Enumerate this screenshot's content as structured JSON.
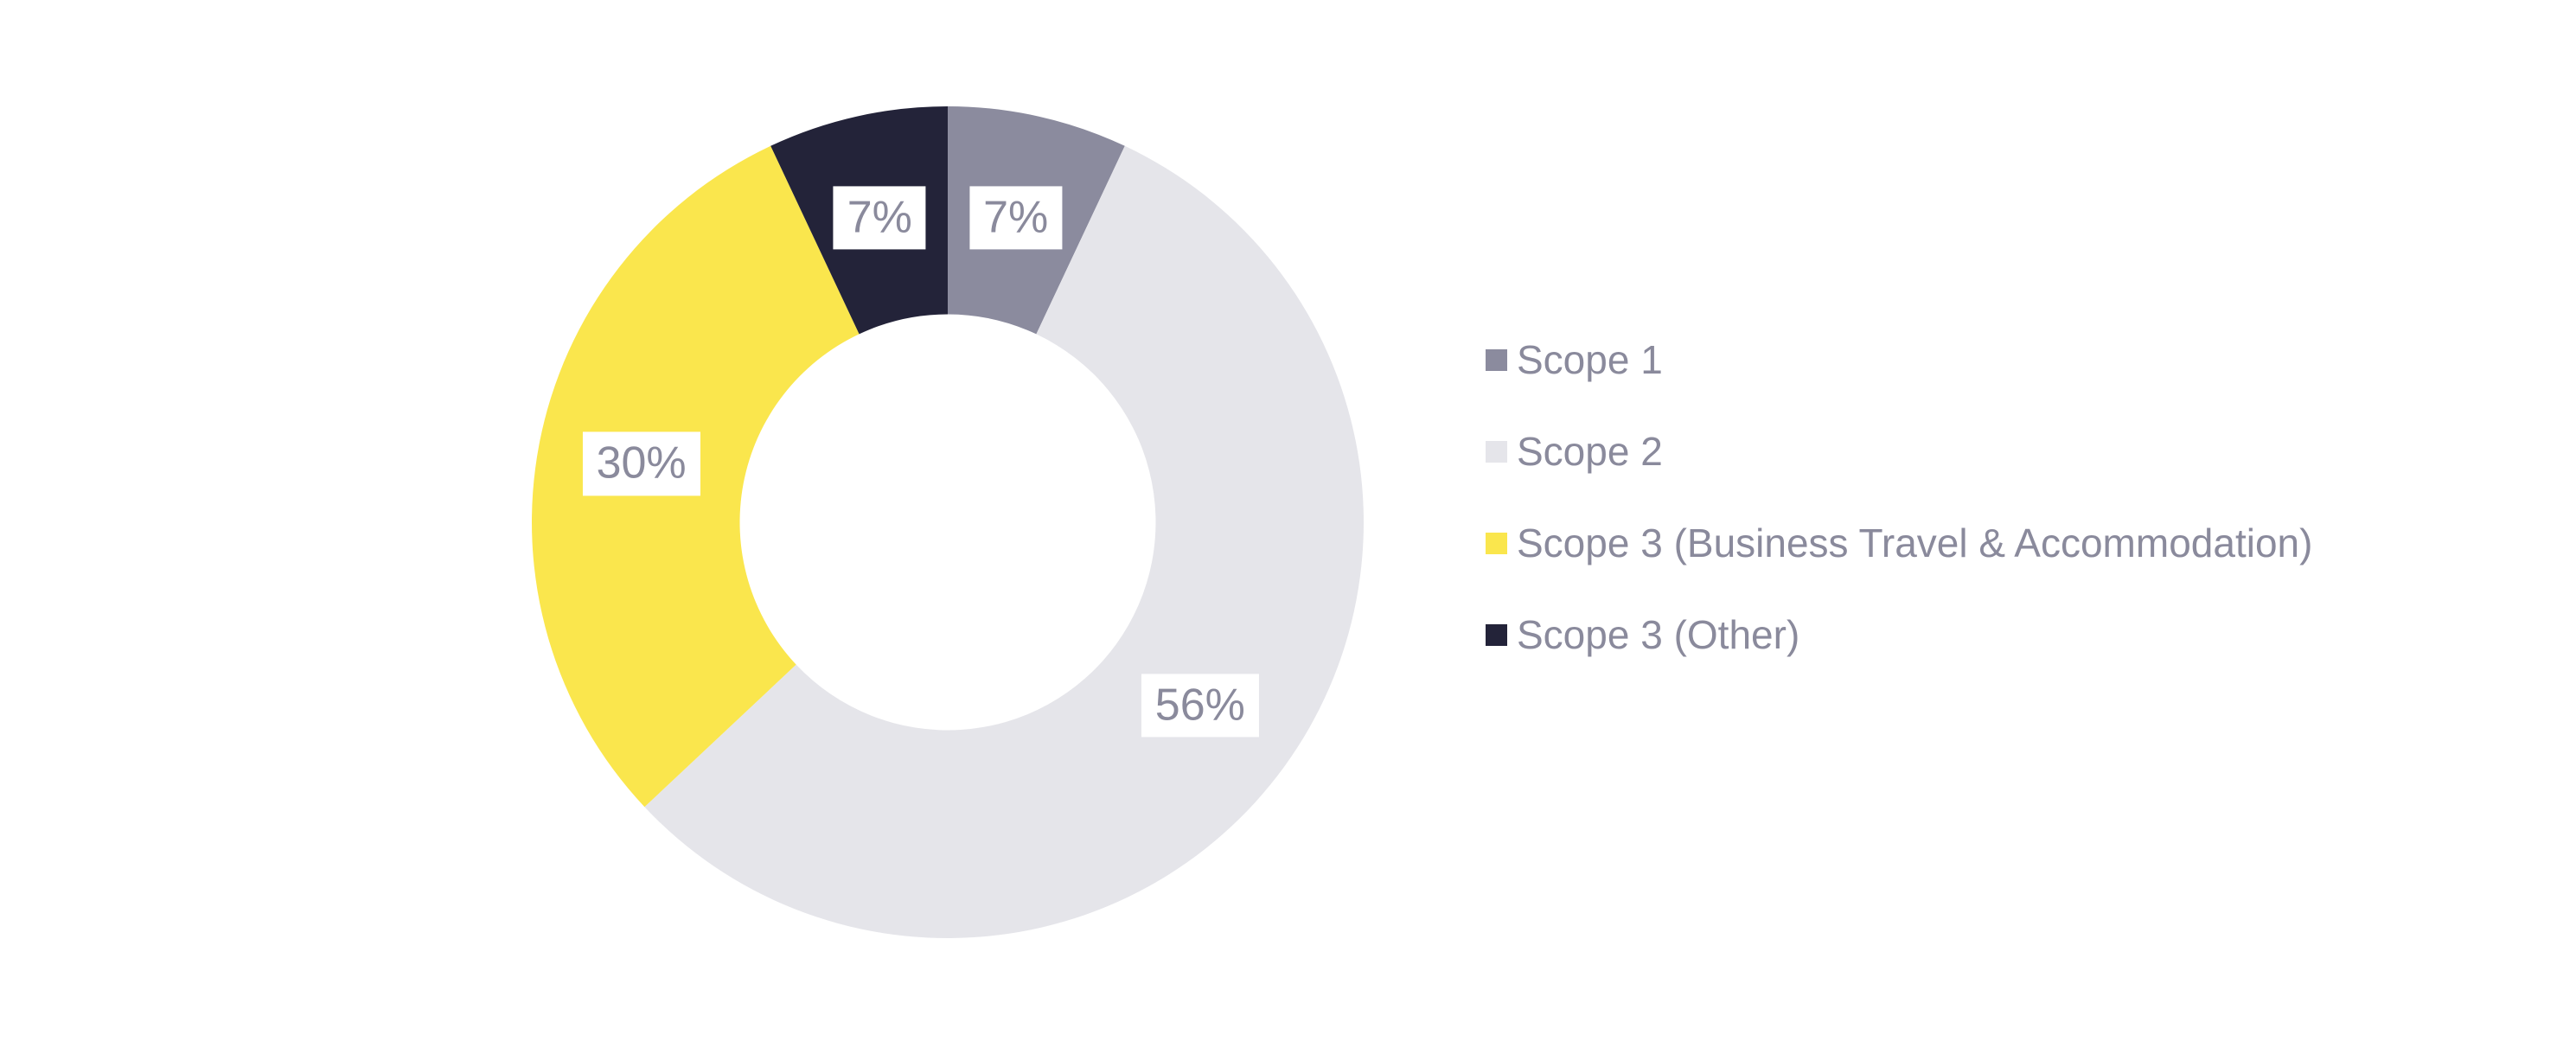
{
  "page": {
    "background": "#FFFFFF"
  },
  "chart_data": {
    "type": "pie",
    "subtype": "donut",
    "unit": "%",
    "direction": "clockwise",
    "start_angle_deg": 0,
    "inner_radius_ratio": 0.5,
    "legend_position": "right",
    "legend_text_color": "#8A8A9C",
    "slice_label_style": {
      "background": "#FFFFFF",
      "text_color": "#8A8A9C"
    },
    "segments": [
      {
        "label": "Scope 1",
        "value": 7,
        "display": "7%",
        "color": "#8B8B9E"
      },
      {
        "label": "Scope 2",
        "value": 56,
        "display": "56%",
        "color": "#E5E5EA"
      },
      {
        "label": "Scope 3 (Business Travel & Accommodation)",
        "value": 30,
        "display": "30%",
        "color": "#FAE64D"
      },
      {
        "label": "Scope 3 (Other)",
        "value": 7,
        "display": "7%",
        "color": "#232339"
      }
    ]
  }
}
